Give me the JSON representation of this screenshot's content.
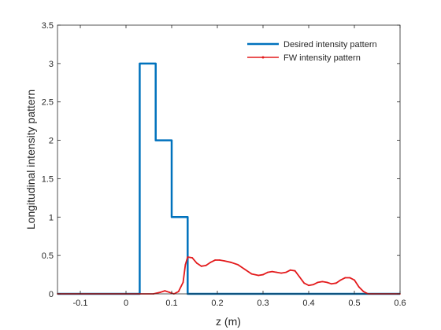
{
  "chart_data": {
    "type": "line",
    "xlabel": "z (m)",
    "ylabel": "Longitudinal intensity pattern",
    "xlim": [
      -0.15,
      0.6
    ],
    "ylim": [
      0,
      3.5
    ],
    "xticks": [
      -0.1,
      0,
      0.1,
      0.2,
      0.3,
      0.4,
      0.5,
      0.6
    ],
    "xtick_labels": [
      "-0.1",
      "0",
      "0.1",
      "0.2",
      "0.3",
      "0.4",
      "0.5",
      "0.6"
    ],
    "yticks": [
      0,
      0.5,
      1,
      1.5,
      2,
      2.5,
      3,
      3.5
    ],
    "ytick_labels": [
      "0",
      "0.5",
      "1",
      "1.5",
      "2",
      "2.5",
      "3",
      "3.5"
    ],
    "grid": false,
    "legend_position": "top-right",
    "series": [
      {
        "name": "Desired intensity pattern",
        "color": "#0072BD",
        "style": "step",
        "x": [
          -0.15,
          0.03,
          0.03,
          0.065,
          0.065,
          0.1,
          0.1,
          0.135,
          0.135,
          0.6
        ],
        "y": [
          0,
          0,
          3,
          3,
          2,
          2,
          1,
          1,
          0,
          0
        ]
      },
      {
        "name": "FW intensity pattern",
        "color": "#E31A1C",
        "style": "line-with-markers",
        "x": [
          -0.15,
          0.06,
          0.075,
          0.085,
          0.095,
          0.105,
          0.115,
          0.125,
          0.13,
          0.135,
          0.145,
          0.155,
          0.165,
          0.175,
          0.185,
          0.195,
          0.205,
          0.215,
          0.23,
          0.245,
          0.26,
          0.275,
          0.29,
          0.3,
          0.31,
          0.32,
          0.33,
          0.34,
          0.35,
          0.36,
          0.37,
          0.38,
          0.39,
          0.4,
          0.41,
          0.42,
          0.43,
          0.44,
          0.45,
          0.46,
          0.47,
          0.48,
          0.49,
          0.5,
          0.51,
          0.52,
          0.53,
          0.54,
          0.6
        ],
        "y": [
          0,
          0,
          0.02,
          0.04,
          0.02,
          0.0,
          0.03,
          0.15,
          0.38,
          0.48,
          0.47,
          0.4,
          0.36,
          0.37,
          0.41,
          0.44,
          0.44,
          0.43,
          0.41,
          0.38,
          0.32,
          0.26,
          0.24,
          0.25,
          0.28,
          0.29,
          0.28,
          0.27,
          0.28,
          0.31,
          0.3,
          0.22,
          0.14,
          0.11,
          0.12,
          0.15,
          0.16,
          0.15,
          0.13,
          0.14,
          0.18,
          0.21,
          0.21,
          0.18,
          0.09,
          0.03,
          0.0,
          0.0,
          0.0
        ]
      }
    ]
  }
}
